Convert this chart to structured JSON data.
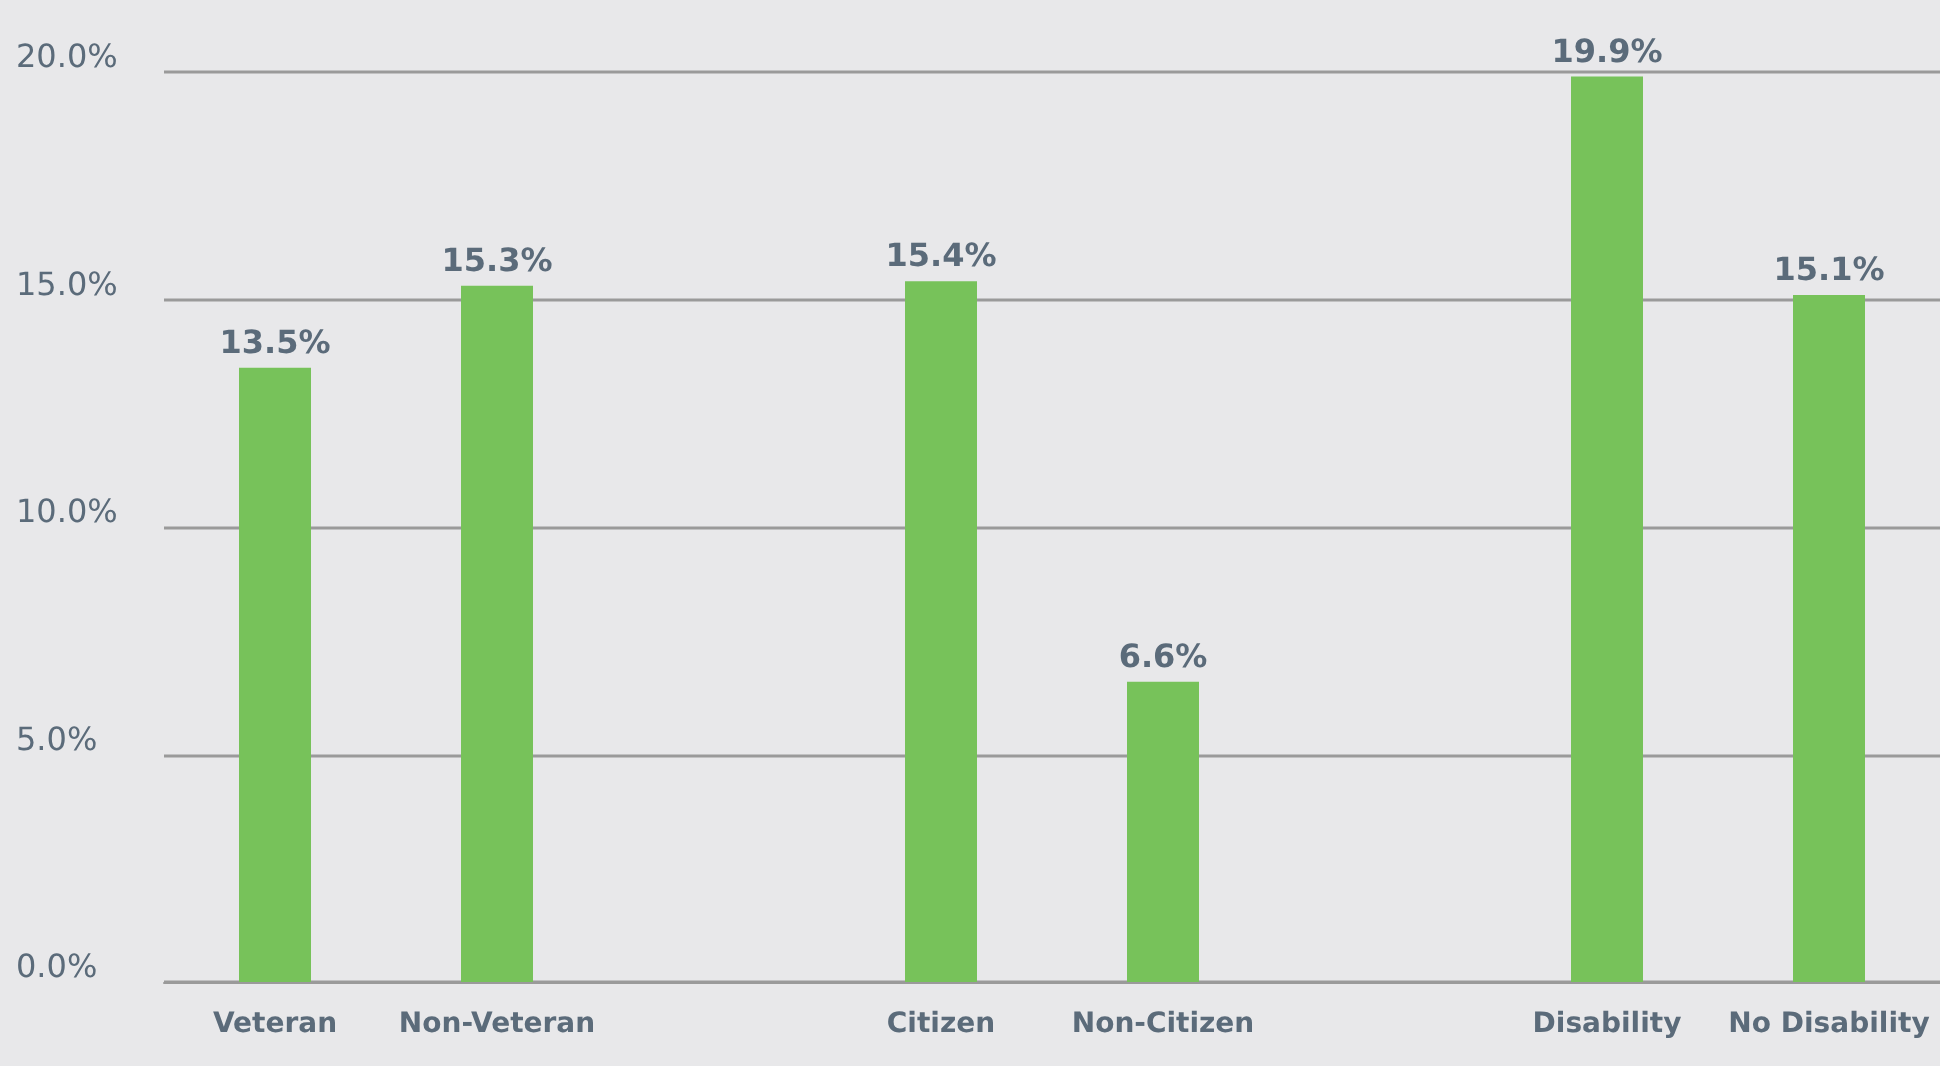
{
  "chart_data": {
    "type": "bar",
    "categories": [
      "Veteran",
      "Non-Veteran",
      null,
      "Citizen",
      "Non-Citizen",
      null,
      "Disability",
      "No Disability"
    ],
    "values": [
      13.5,
      15.3,
      null,
      15.4,
      6.6,
      null,
      19.9,
      15.1
    ],
    "value_labels": [
      "13.5%",
      "15.3%",
      null,
      "15.4%",
      "6.6%",
      null,
      "19.9%",
      "15.1%"
    ],
    "color": "#77c25a",
    "ylim": [
      0,
      20
    ],
    "yticks": [
      {
        "value": 0,
        "label": "0.0%"
      },
      {
        "value": 5,
        "label": "5.0%"
      },
      {
        "value": 10,
        "label": "10.0%"
      },
      {
        "value": 15,
        "label": "15.0%"
      },
      {
        "value": 20,
        "label": "20.0%"
      }
    ],
    "grid": "y"
  }
}
